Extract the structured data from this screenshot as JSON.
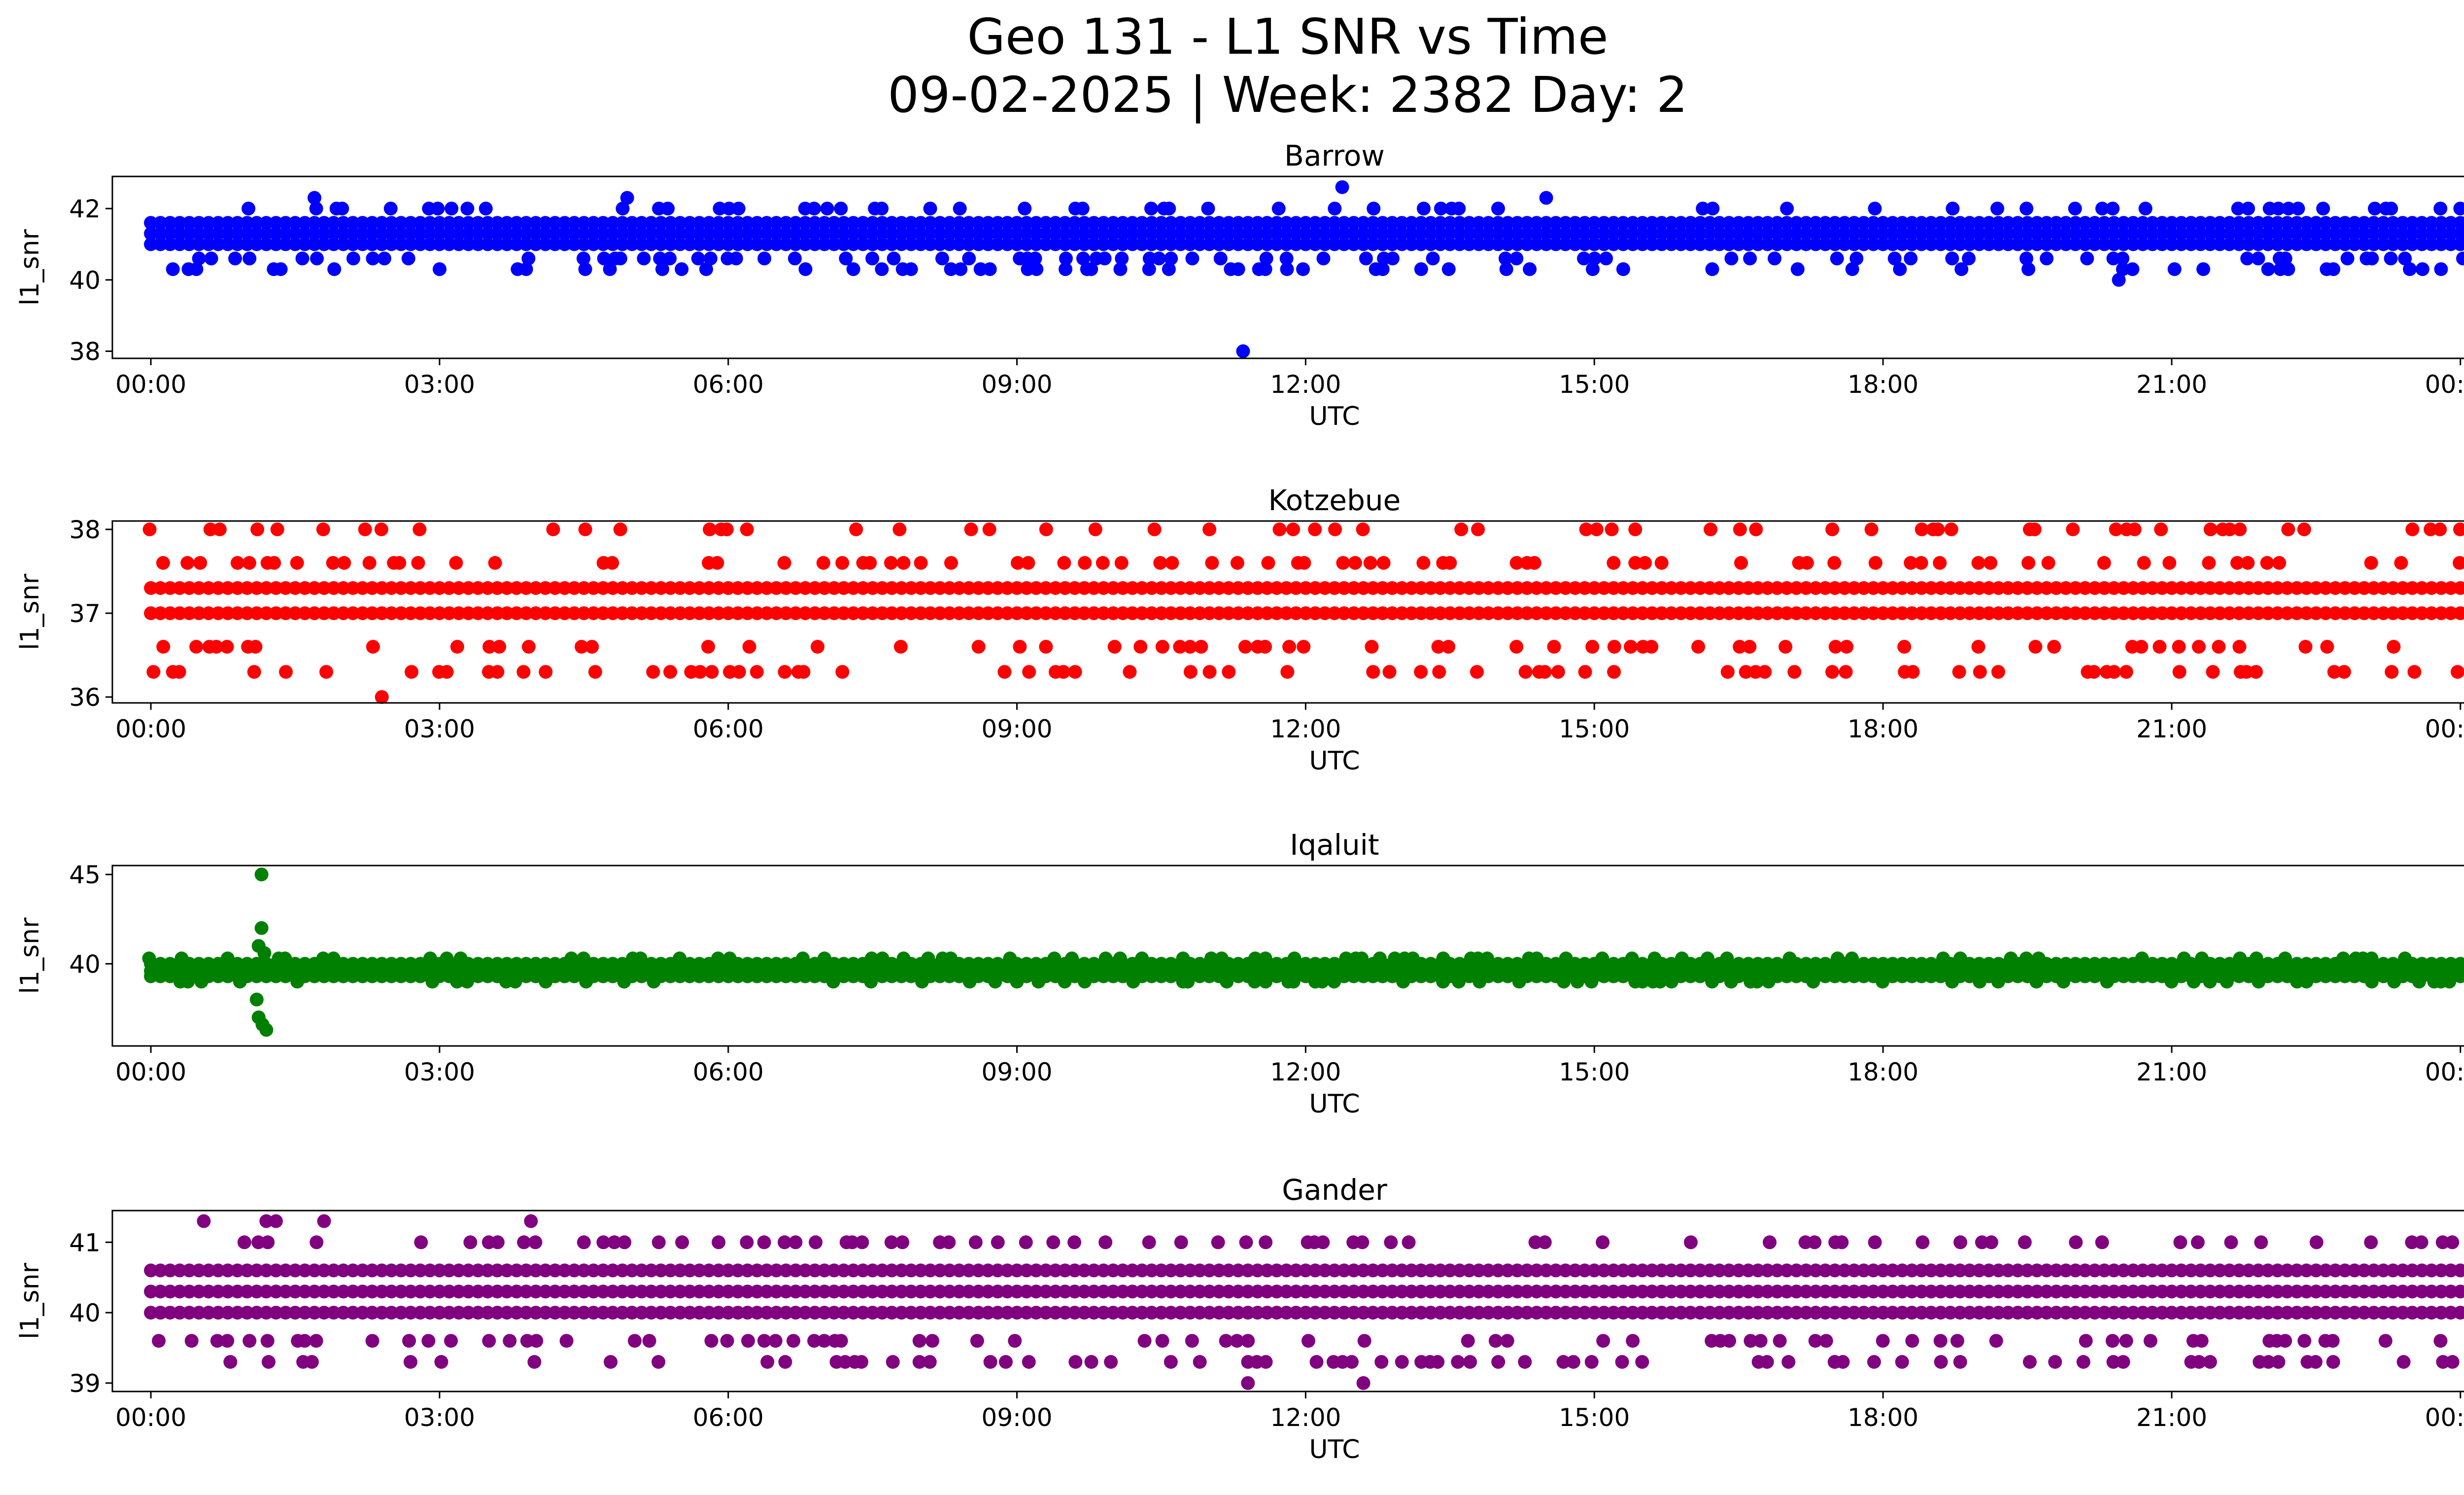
{
  "title_line1": "Geo 131 - L1 SNR vs Time",
  "title_line2": "09-02-2025 | Week: 2382 Day: 2",
  "chart_data": [
    {
      "type": "scatter",
      "title": "Barrow",
      "xlabel": "UTC",
      "ylabel": "l1_snr",
      "color": "#0000ff",
      "xlim_hours": [
        -0.4,
        25.0
      ],
      "ylim": [
        37.8,
        42.9
      ],
      "xticks": [
        "00:00",
        "03:00",
        "06:00",
        "09:00",
        "12:00",
        "15:00",
        "18:00",
        "21:00",
        "00:00"
      ],
      "xtick_hours": [
        0,
        3,
        6,
        9,
        12,
        15,
        18,
        21,
        24
      ],
      "yticks": [
        38,
        40,
        42
      ],
      "series": [
        {
          "name": "Barrow",
          "levels": [
            40.3,
            40.6,
            41.0,
            41.3,
            41.6,
            42.0
          ],
          "main_levels": [
            41.0,
            41.3,
            41.6
          ],
          "outliers": [
            [
              11.35,
              38.0
            ],
            [
              12.38,
              42.6
            ],
            [
              1.7,
              42.3
            ],
            [
              4.95,
              42.3
            ],
            [
              14.5,
              42.3
            ],
            [
              20.45,
              40.0
            ],
            [
              1.35,
              40.3
            ],
            [
              11.3,
              40.3
            ]
          ]
        }
      ]
    },
    {
      "type": "scatter",
      "title": "Kotzebue",
      "xlabel": "UTC",
      "ylabel": "l1_snr",
      "color": "#ff0000",
      "xlim_hours": [
        -0.4,
        25.0
      ],
      "ylim": [
        35.93,
        38.1
      ],
      "xticks": [
        "00:00",
        "03:00",
        "06:00",
        "09:00",
        "12:00",
        "15:00",
        "18:00",
        "21:00",
        "00:00"
      ],
      "xtick_hours": [
        0,
        3,
        6,
        9,
        12,
        15,
        18,
        21,
        24
      ],
      "yticks": [
        36,
        37,
        38
      ],
      "series": [
        {
          "name": "Kotzebue",
          "levels": [
            36.3,
            36.6,
            37.0,
            37.3,
            37.6,
            38.0
          ],
          "main_levels": [
            37.0,
            37.3
          ],
          "outliers": [
            [
              2.4,
              36.0
            ]
          ]
        }
      ]
    },
    {
      "type": "scatter",
      "title": "Iqaluit",
      "xlabel": "UTC",
      "ylabel": "l1_snr",
      "color": "#008000",
      "xlim_hours": [
        -0.4,
        25.0
      ],
      "ylim": [
        35.4,
        45.5
      ],
      "xticks": [
        "00:00",
        "03:00",
        "06:00",
        "09:00",
        "12:00",
        "15:00",
        "18:00",
        "21:00",
        "00:00"
      ],
      "xtick_hours": [
        0,
        3,
        6,
        9,
        12,
        15,
        18,
        21,
        24
      ],
      "yticks": [
        40,
        45
      ],
      "series": [
        {
          "name": "Iqaluit",
          "levels": [
            39.0,
            39.3,
            39.6,
            40.0,
            40.3
          ],
          "main_levels": [
            39.3,
            39.6,
            40.0
          ],
          "outliers": [
            [
              1.15,
              45.0
            ],
            [
              1.15,
              42.0
            ],
            [
              1.12,
              41.0
            ],
            [
              1.18,
              40.6
            ],
            [
              1.1,
              38.0
            ],
            [
              1.12,
              37.0
            ],
            [
              1.16,
              36.6
            ],
            [
              1.2,
              36.3
            ]
          ]
        }
      ]
    },
    {
      "type": "scatter",
      "title": "Gander",
      "xlabel": "UTC",
      "ylabel": "l1_snr",
      "color": "#800080",
      "xlim_hours": [
        -0.4,
        25.0
      ],
      "ylim": [
        38.88,
        41.45
      ],
      "xticks": [
        "00:00",
        "03:00",
        "06:00",
        "09:00",
        "12:00",
        "15:00",
        "18:00",
        "21:00",
        "00:00"
      ],
      "xtick_hours": [
        0,
        3,
        6,
        9,
        12,
        15,
        18,
        21,
        24
      ],
      "yticks": [
        39,
        40,
        41
      ],
      "series": [
        {
          "name": "Gander",
          "levels": [
            39.3,
            39.6,
            40.0,
            40.3,
            40.6,
            41.0
          ],
          "main_levels": [
            40.0,
            40.3,
            40.6
          ],
          "outliers": [
            [
              0.1,
              40.0
            ],
            [
              0.3,
              40.0
            ],
            [
              0.6,
              40.0
            ],
            [
              0.55,
              41.3
            ],
            [
              1.2,
              41.3
            ],
            [
              1.3,
              41.3
            ],
            [
              1.8,
              41.3
            ],
            [
              3.95,
              41.3
            ],
            [
              11.4,
              39.0
            ],
            [
              12.6,
              39.0
            ],
            [
              17.5,
              39.3
            ]
          ]
        }
      ]
    }
  ]
}
